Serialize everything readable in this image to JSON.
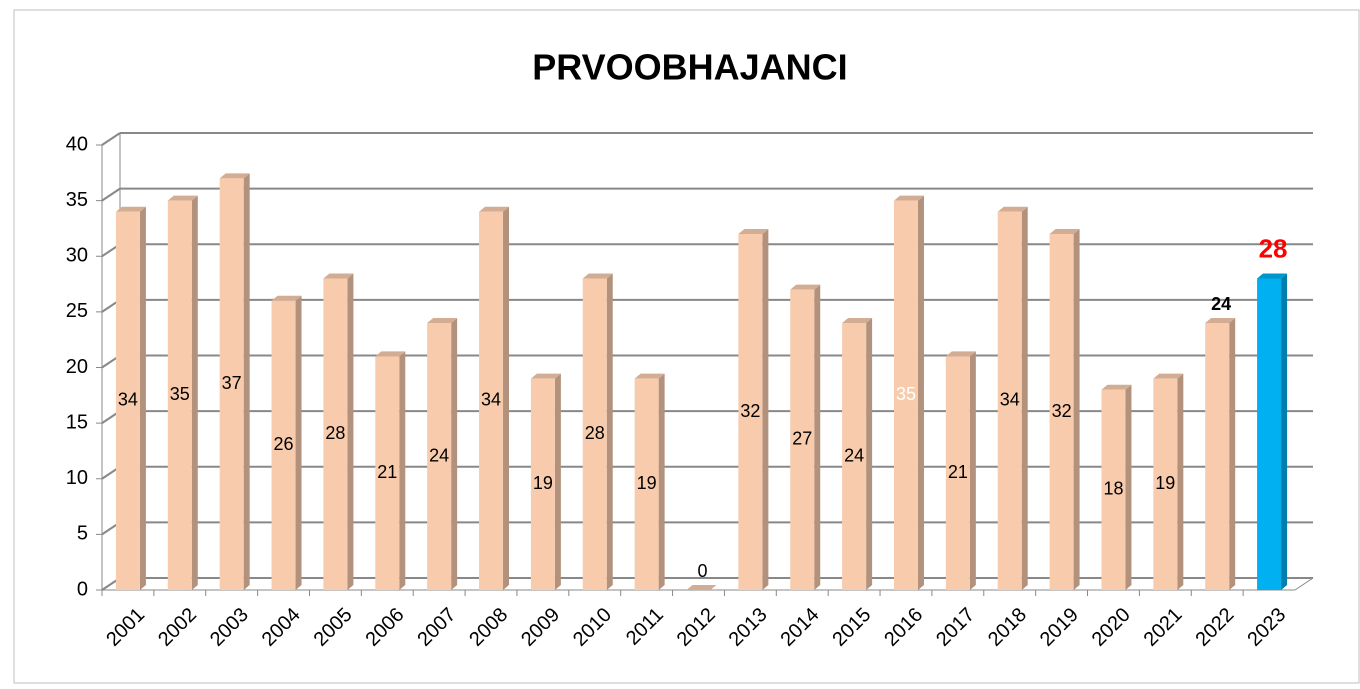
{
  "chart_data": {
    "type": "bar3d",
    "title": "PRVOOBHAJANCI",
    "categories": [
      "2001",
      "2002",
      "2003",
      "2004",
      "2005",
      "2006",
      "2007",
      "2008",
      "2009",
      "2010",
      "2011",
      "2012",
      "2013",
      "2014",
      "2015",
      "2016",
      "2017",
      "2018",
      "2019",
      "2020",
      "2021",
      "2022",
      "2023"
    ],
    "values": [
      34,
      35,
      37,
      26,
      28,
      21,
      24,
      34,
      19,
      28,
      19,
      0,
      32,
      27,
      24,
      35,
      21,
      34,
      32,
      18,
      19,
      24,
      28
    ],
    "colors": [
      "#f8cbad",
      "#f8cbad",
      "#f8cbad",
      "#f8cbad",
      "#f8cbad",
      "#f8cbad",
      "#f8cbad",
      "#f8cbad",
      "#f8cbad",
      "#f8cbad",
      "#f8cbad",
      "#f8cbad",
      "#f8cbad",
      "#f8cbad",
      "#f8cbad",
      "#f8cbad",
      "#f8cbad",
      "#f8cbad",
      "#f8cbad",
      "#f8cbad",
      "#f8cbad",
      "#f8cbad",
      "#00b0f0"
    ],
    "label_colors": [
      "#000000",
      "#000000",
      "#000000",
      "#000000",
      "#000000",
      "#000000",
      "#000000",
      "#000000",
      "#000000",
      "#000000",
      "#000000",
      "#000000",
      "#000000",
      "#000000",
      "#000000",
      "#ffffff",
      "#000000",
      "#000000",
      "#000000",
      "#000000",
      "#000000",
      "#000000",
      "#ff0000"
    ],
    "label_above": [
      "2012",
      "2022",
      "2023"
    ],
    "ylim": [
      0,
      40
    ],
    "yticks": [
      0,
      5,
      10,
      15,
      20,
      25,
      30,
      35,
      40
    ],
    "grid": true
  }
}
